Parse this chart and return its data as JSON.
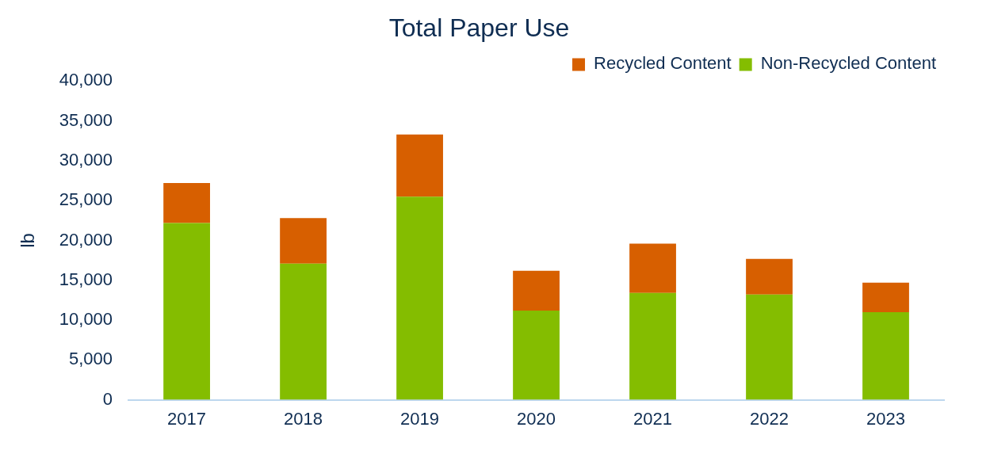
{
  "chart_data": {
    "type": "bar",
    "title": "Total Paper Use",
    "ylabel": "lb",
    "categories": [
      "2017",
      "2018",
      "2019",
      "2020",
      "2021",
      "2022",
      "2023"
    ],
    "series": [
      {
        "name": "Non-Recycled Content",
        "color": "#84bd00",
        "values": [
          22200,
          17100,
          25500,
          11200,
          13400,
          13200,
          11000
        ]
      },
      {
        "name": "Recycled Content",
        "color": "#d75f00",
        "values": [
          5000,
          5700,
          7800,
          5000,
          6200,
          4500,
          3700
        ]
      }
    ],
    "stacked": true,
    "ylim": [
      0,
      40000
    ],
    "yticks": [
      {
        "value": 0,
        "label": "0"
      },
      {
        "value": 5000,
        "label": "5,000"
      },
      {
        "value": 10000,
        "label": "10,000"
      },
      {
        "value": 15000,
        "label": "15,000"
      },
      {
        "value": 20000,
        "label": "20,000"
      },
      {
        "value": 25000,
        "label": "25,000"
      },
      {
        "value": 30000,
        "label": "30,000"
      },
      {
        "value": 35000,
        "label": "35,000"
      },
      {
        "value": 40000,
        "label": "40,000"
      }
    ],
    "grid": false,
    "legend": "top right"
  }
}
